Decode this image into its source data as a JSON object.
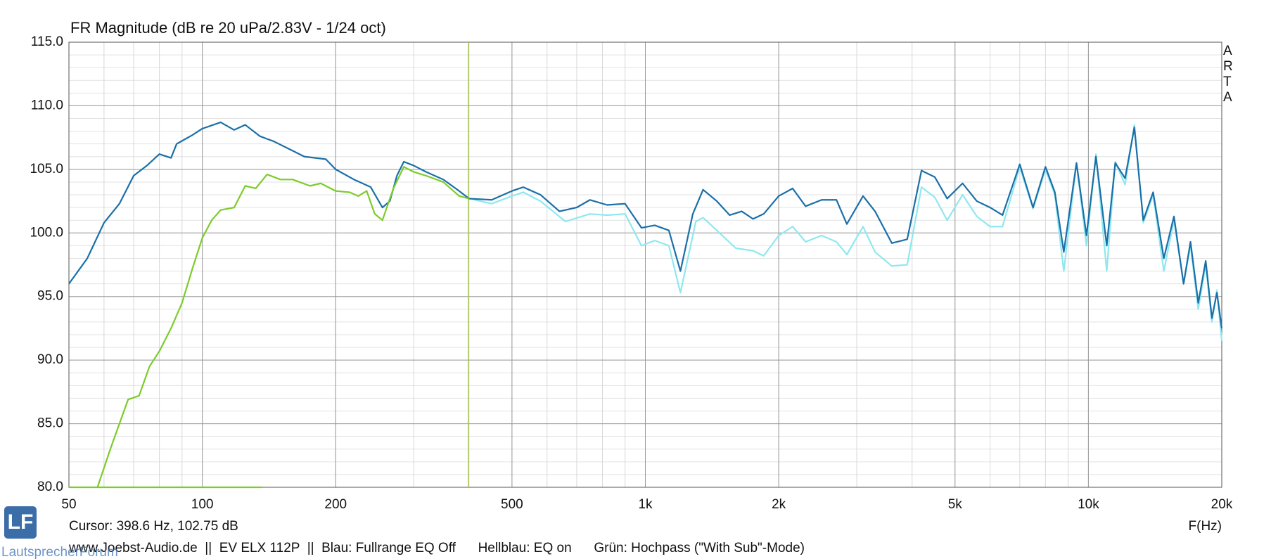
{
  "chart_data": {
    "type": "line",
    "title": "FR Magnitude (dB re 20 uPa/2.83V - 1/24 oct)",
    "x_label": "F(Hz)",
    "cursor_label": "Cursor: 398.6 Hz, 102.75 dB",
    "cursor": {
      "x": 398.6,
      "color": "#a8c850"
    },
    "footer": "www.Joebst-Audio.de  ||  EV ELX 112P  ||  Blau: Fullrange EQ Off      Hellblau: EQ on      Grün: Hochpass (\"With Sub\"-Mode)",
    "watermark": "LautsprecherForum",
    "logo": "LF",
    "brand": "ARTA",
    "xscale": "log",
    "grid": true,
    "xlim": [
      50,
      20000
    ],
    "ylim": [
      80,
      115
    ],
    "xticks": [
      50,
      100,
      200,
      500,
      {
        "value": 1000,
        "label": "1k"
      },
      {
        "value": 2000,
        "label": "2k"
      },
      {
        "value": 5000,
        "label": "5k"
      },
      {
        "value": 10000,
        "label": "10k"
      },
      {
        "value": 20000,
        "label": "20k"
      }
    ],
    "yticks": [
      {
        "value": 80,
        "label": "80.0"
      },
      {
        "value": 85,
        "label": "85.0"
      },
      {
        "value": 90,
        "label": "90.0"
      },
      {
        "value": 95,
        "label": "95.0"
      },
      {
        "value": 100,
        "label": "100.0"
      },
      {
        "value": 105,
        "label": "105.0"
      },
      {
        "value": 110,
        "label": "110.0"
      },
      {
        "value": 115,
        "label": "115.0"
      }
    ],
    "series": [
      {
        "color": "#1a6fa8",
        "x": [
          50,
          55,
          60,
          65,
          70,
          75,
          80,
          85,
          87.5,
          95,
          100,
          110,
          118,
          125,
          135,
          145,
          155,
          170,
          190,
          200,
          220,
          240,
          255,
          265,
          275,
          285,
          300,
          320,
          350,
          380,
          400,
          450,
          500,
          530,
          580,
          640,
          700,
          750,
          820,
          900,
          980,
          1050,
          1130,
          1200,
          1280,
          1350,
          1450,
          1550,
          1650,
          1750,
          1850,
          2000,
          2150,
          2300,
          2500,
          2700,
          2850,
          3100,
          3300,
          3600,
          3900,
          4200,
          4500,
          4800,
          5200,
          5600,
          6000,
          6400,
          7000,
          7500,
          8000,
          8400,
          8800,
          9400,
          9900,
          10400,
          11000,
          11500,
          12100,
          12700,
          13300,
          14000,
          14800,
          15600,
          16400,
          17000,
          17700,
          18400,
          19000,
          19500,
          20000
        ],
        "values": [
          96.0,
          98.0,
          100.8,
          102.3,
          104.5,
          105.3,
          106.2,
          105.9,
          107.0,
          107.7,
          108.2,
          108.7,
          108.1,
          108.5,
          107.6,
          107.2,
          106.7,
          106.0,
          105.8,
          105.0,
          104.2,
          103.6,
          102.0,
          102.5,
          104.5,
          105.6,
          105.3,
          104.8,
          104.2,
          103.3,
          102.7,
          102.6,
          103.3,
          103.6,
          103.0,
          101.7,
          102.0,
          102.6,
          102.2,
          102.3,
          100.4,
          100.6,
          100.2,
          97.0,
          101.5,
          103.4,
          102.5,
          101.4,
          101.7,
          101.1,
          101.5,
          102.9,
          103.5,
          102.1,
          102.6,
          102.6,
          100.7,
          102.9,
          101.7,
          99.2,
          99.5,
          104.9,
          104.4,
          102.7,
          103.9,
          102.5,
          102.0,
          101.4,
          105.4,
          102.0,
          105.2,
          103.2,
          98.5,
          105.5,
          99.8,
          106.0,
          99.0,
          105.5,
          104.3,
          108.3,
          101.0,
          103.2,
          98.0,
          101.3,
          96.0,
          99.3,
          94.5,
          97.8,
          93.3,
          95.3,
          92.5
        ]
      },
      {
        "color": "#8ee8f0",
        "x": [
          400,
          450,
          500,
          530,
          580,
          660,
          750,
          820,
          900,
          980,
          1050,
          1130,
          1200,
          1300,
          1350,
          1450,
          1600,
          1750,
          1850,
          2000,
          2150,
          2300,
          2500,
          2700,
          2850,
          3100,
          3300,
          3600,
          3900,
          4200,
          4500,
          4800,
          5200,
          5600,
          6000,
          6400,
          7000,
          7500,
          8000,
          8400,
          8800,
          9400,
          9900,
          10400,
          11000,
          11500,
          12100,
          12700,
          13300,
          14000,
          14800,
          15600,
          16400,
          17000,
          17700,
          18400,
          19000,
          19500,
          20000
        ],
        "values": [
          102.7,
          102.3,
          102.9,
          103.2,
          102.5,
          100.9,
          101.5,
          101.4,
          101.5,
          99.0,
          99.4,
          99.0,
          95.3,
          100.9,
          101.2,
          100.2,
          98.8,
          98.6,
          98.2,
          99.8,
          100.5,
          99.3,
          99.8,
          99.3,
          98.3,
          100.5,
          98.5,
          97.4,
          97.5,
          103.6,
          102.8,
          101.0,
          103.0,
          101.3,
          100.5,
          100.5,
          105.2,
          101.9,
          105.0,
          103.0,
          97.0,
          105.5,
          99.0,
          106.2,
          97.0,
          105.6,
          103.8,
          108.5,
          100.8,
          103.0,
          97.0,
          101.0,
          96.0,
          99.0,
          94.0,
          97.5,
          93.0,
          95.5,
          91.5
        ]
      },
      {
        "color": "#7ccc2a",
        "x": [
          58,
          62,
          65,
          68,
          72,
          76,
          80,
          85,
          90,
          95,
          100,
          105,
          110,
          118,
          125,
          132,
          140,
          150,
          160,
          175,
          185,
          200,
          215,
          225,
          235,
          245,
          255,
          270,
          285,
          300,
          320,
          350,
          380,
          400
        ],
        "values": [
          80.0,
          83.0,
          85.0,
          86.9,
          87.2,
          89.5,
          90.7,
          92.5,
          94.5,
          97.2,
          99.6,
          101.0,
          101.8,
          102.0,
          103.7,
          103.5,
          104.6,
          104.2,
          104.2,
          103.7,
          103.9,
          103.3,
          103.2,
          102.9,
          103.3,
          101.5,
          101.0,
          103.5,
          105.2,
          104.8,
          104.5,
          104.0,
          102.9,
          102.7
        ]
      },
      {
        "color": "#7ccc2a",
        "x": [
          50,
          136
        ],
        "values": [
          80,
          80
        ]
      }
    ]
  }
}
